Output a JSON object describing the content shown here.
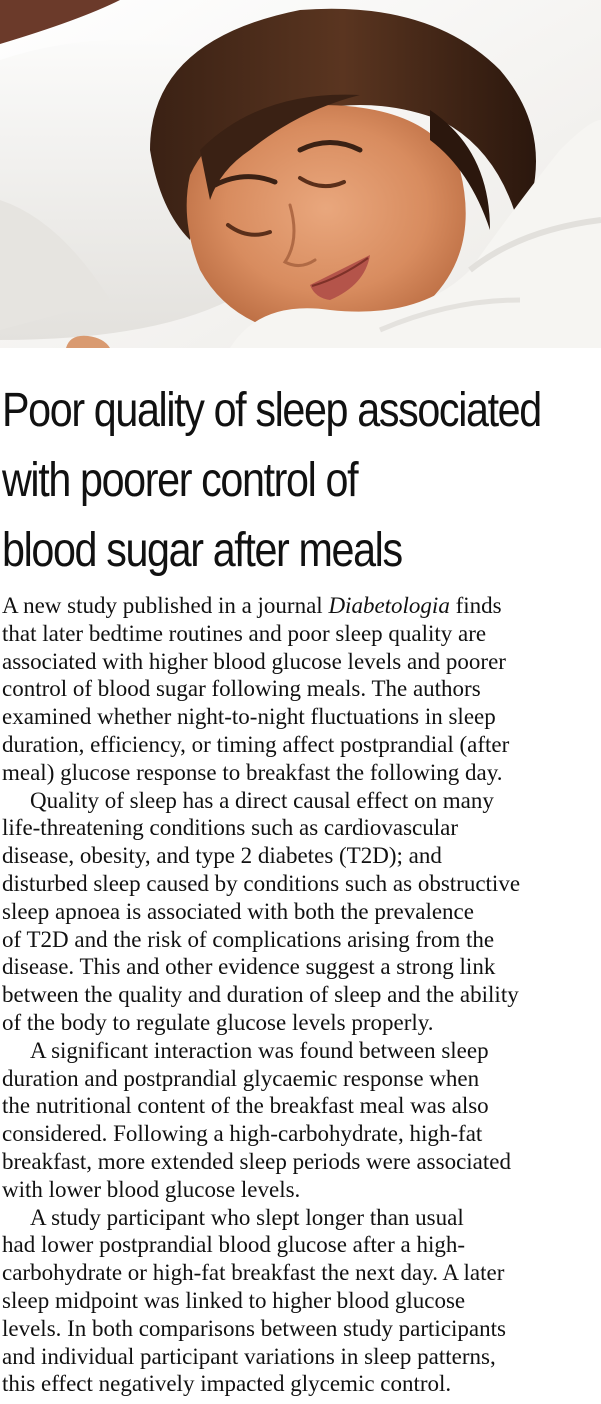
{
  "photo": {
    "alt": "Woman sleeping peacefully on white pillow"
  },
  "headline": {
    "lines": [
      "Poor quality of sleep associated",
      "with poorer control of",
      "blood sugar after meals"
    ]
  },
  "article": {
    "p1": {
      "l1_a": "A new study published in a journal ",
      "l1_journal": "Diabetologia",
      "l1_b": " finds",
      "l2": "that later bedtime routines and poor sleep quality are",
      "l3": "associated with higher blood glucose levels and poorer",
      "l4": "control of blood sugar following meals. The authors",
      "l5": "examined whether night-to-night fluctuations in sleep",
      "l6": "duration, efficiency, or timing affect postprandial (after",
      "l7": "meal) glucose response to breakfast the following day."
    },
    "p2": {
      "l1": "Quality of sleep has a direct causal effect on many",
      "l2": "life-threatening conditions such as cardiovascular",
      "l3": "disease, obesity, and type 2 diabetes (T2D); and",
      "l4": "disturbed sleep caused by conditions such as obstructive",
      "l5": "sleep apnoea is associated with both the prevalence",
      "l6": "of T2D and the risk of complications arising from the",
      "l7": "disease. This and other evidence suggest a strong link",
      "l8": "between the quality and duration of sleep and the ability",
      "l9": "of the body to regulate glucose levels properly."
    },
    "p3": {
      "l1": "A significant interaction was found between sleep",
      "l2": "duration and postprandial glycaemic response when",
      "l3": "the nutritional content of the breakfast meal was also",
      "l4": "considered. Following a high-carbohydrate, high-fat",
      "l5": "breakfast, more extended sleep periods were associated",
      "l6": "with lower blood glucose levels."
    },
    "p4": {
      "l1": "A study participant who slept longer than usual",
      "l2": "had lower postprandial blood glucose after a high-",
      "l3": "carbohydrate or high-fat breakfast the next day. A later",
      "l4": "sleep midpoint was linked to higher blood glucose",
      "l5": "levels. In both comparisons between study participants",
      "l6": "and individual participant variations in sleep patterns,",
      "l7": "this effect negatively impacted glycemic control."
    }
  }
}
